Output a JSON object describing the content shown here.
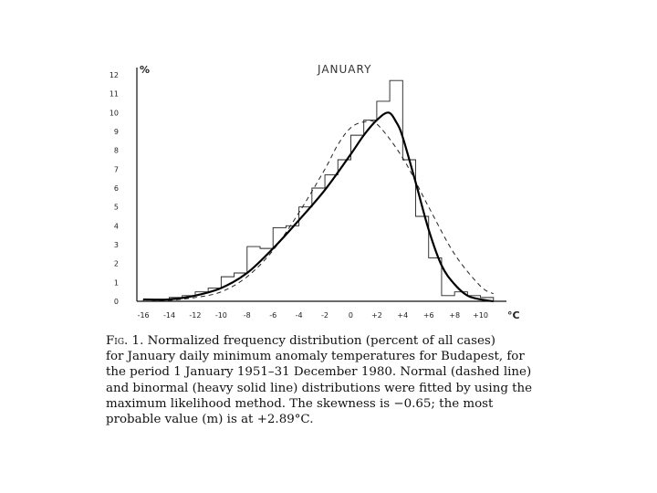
{
  "chart_data": {
    "type": "histogram-with-curves",
    "title": "JANUARY",
    "xlabel": "°C",
    "ylabel": "%",
    "xlim": [
      -16.5,
      12
    ],
    "ylim": [
      0,
      12
    ],
    "x_ticks": [
      "-16",
      "-14",
      "-12",
      "-10",
      "-8",
      "-6",
      "-4",
      "-2",
      "0",
      "+2",
      "+4",
      "+6",
      "+8",
      "+10"
    ],
    "y_ticks": [
      "0",
      "1",
      "2",
      "3",
      "4",
      "5",
      "6",
      "7",
      "8",
      "9",
      "10",
      "11",
      "12"
    ],
    "histogram": {
      "bin_edges": [
        -16,
        -15,
        -14,
        -13,
        -12,
        -11,
        -10,
        -9,
        -8,
        -7,
        -6,
        -5,
        -4,
        -3,
        -2,
        -1,
        0,
        1,
        2,
        3,
        4,
        5,
        6,
        7,
        8,
        9,
        10,
        11
      ],
      "values": [
        0.1,
        0.1,
        0.2,
        0.3,
        0.5,
        0.7,
        1.3,
        1.5,
        2.9,
        2.8,
        3.9,
        4.0,
        5.0,
        6.0,
        6.7,
        7.5,
        8.8,
        9.6,
        10.6,
        11.7,
        7.5,
        4.5,
        2.3,
        0.3,
        0.5,
        0.3,
        0.2
      ]
    },
    "series": [
      {
        "style": "dashed",
        "x": [
          -16,
          -14,
          -12,
          -10,
          -8,
          -6,
          -4,
          -2,
          -1,
          0,
          1,
          2,
          4,
          6,
          8,
          10,
          11
        ],
        "y": [
          0.0,
          0.05,
          0.2,
          0.5,
          1.3,
          2.7,
          4.7,
          7.0,
          8.3,
          9.2,
          9.5,
          9.4,
          7.6,
          5.0,
          2.5,
          0.8,
          0.4
        ]
      },
      {
        "style": "solid-heavy",
        "x": [
          -16,
          -14,
          -12,
          -10,
          -8,
          -6,
          -4,
          -2,
          0,
          1,
          2,
          2.89,
          3.5,
          4,
          5,
          6,
          7,
          8,
          9,
          10,
          11
        ],
        "y": [
          0.1,
          0.1,
          0.3,
          0.7,
          1.5,
          2.8,
          4.3,
          5.9,
          7.8,
          8.8,
          9.6,
          10.0,
          9.5,
          8.7,
          6.3,
          3.8,
          1.9,
          0.9,
          0.3,
          0.1,
          0.0
        ]
      }
    ]
  },
  "caption": {
    "lines": [
      [
        "Fig",
        ". 1. Normalized frequency distribution (percent of all cases)"
      ],
      [
        "",
        "for January daily minimum anomaly temperatures for Budapest, for"
      ],
      [
        "",
        "the period 1 January 1951–31 December 1980. Normal (dashed line)"
      ],
      [
        "",
        "and binormal (heavy solid line) distributions were fitted by using the"
      ],
      [
        "",
        "maximum likelihood method. The skewness is −0.65; the most"
      ],
      [
        "",
        "probable value (m) is at +2.89°C."
      ]
    ]
  }
}
